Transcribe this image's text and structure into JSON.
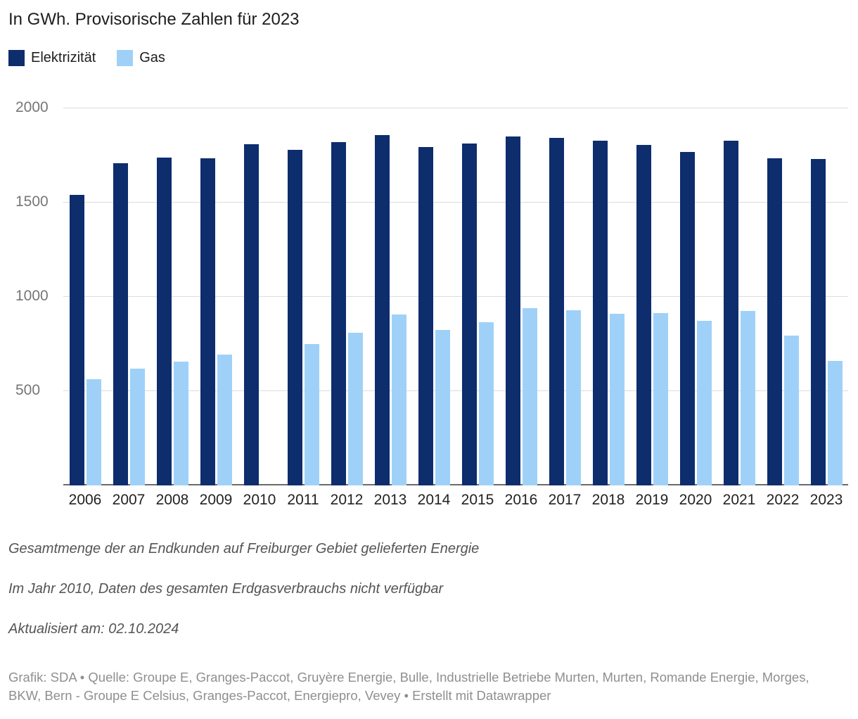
{
  "chart_data": {
    "type": "bar",
    "title": "In GWh. Provisorische Zahlen für 2023",
    "categories": [
      "2006",
      "2007",
      "2008",
      "2009",
      "2010",
      "2011",
      "2012",
      "2013",
      "2014",
      "2015",
      "2016",
      "2017",
      "2018",
      "2019",
      "2020",
      "2021",
      "2022",
      "2023"
    ],
    "series": [
      {
        "name": "Elektrizität",
        "color": "#0d2d6d",
        "values": [
          1540,
          1710,
          1740,
          1735,
          1810,
          1780,
          1820,
          1860,
          1795,
          1815,
          1850,
          1845,
          1830,
          1805,
          1770,
          1830,
          1735,
          1730
        ]
      },
      {
        "name": "Gas",
        "color": "#9fd1f8",
        "values": [
          565,
          620,
          655,
          695,
          null,
          750,
          810,
          905,
          825,
          865,
          940,
          930,
          910,
          915,
          875,
          925,
          795,
          660
        ]
      }
    ],
    "legend": [
      {
        "label": "Elektrizität",
        "color": "#0d2d6d"
      },
      {
        "label": "Gas",
        "color": "#9fd1f8"
      }
    ],
    "legend_position": "top",
    "grid": true,
    "y_ticks": [
      500,
      1000,
      1500,
      2000
    ],
    "ylim": [
      0,
      2000
    ],
    "xlabel": "",
    "ylabel": ""
  },
  "notes": {
    "line1": "Gesamtmenge der an Endkunden auf Freiburger Gebiet gelieferten Energie",
    "line2": "Im Jahr 2010, Daten des gesamten Erdgasverbrauchs nicht verfügbar",
    "line3": "Aktualisiert am: 02.10.2024"
  },
  "footer": {
    "text": "Grafik: SDA • Quelle: Groupe E, Granges-Paccot, Gruyère Energie, Bulle, Industrielle Betriebe Murten, Murten, Romande Energie, Morges, BKW, Bern - Groupe E Celsius, Granges-Paccot, Energiepro, Vevey • Erstellt mit Datawrapper"
  }
}
